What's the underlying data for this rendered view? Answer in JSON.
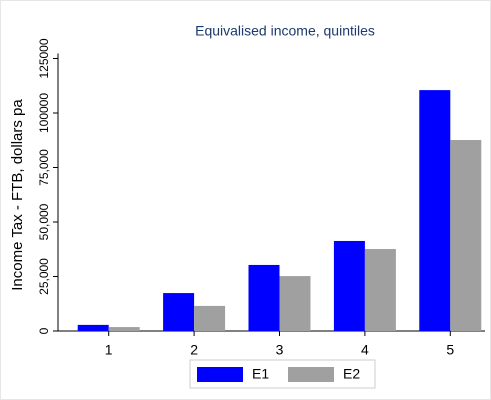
{
  "chart_data": {
    "type": "bar",
    "title": "Equivalised income, quintiles",
    "y_label": "Income Tax - FTB, dollars pa",
    "categories": [
      "1",
      "2",
      "3",
      "4",
      "5"
    ],
    "series": [
      {
        "name": "E1",
        "color": "#0000ff",
        "values": [
          2800,
          17400,
          30300,
          41300,
          110500
        ]
      },
      {
        "name": "E2",
        "color": "#a0a0a0",
        "values": [
          1800,
          11500,
          25200,
          37600,
          87600
        ]
      }
    ],
    "ylim": [
      0,
      125000
    ],
    "yticks": [
      0,
      {
        "value": 25000,
        "label": "25,000"
      },
      {
        "value": 50000,
        "label": "50,000"
      },
      {
        "value": 75000,
        "label": "75,000"
      },
      100000,
      125000
    ]
  }
}
